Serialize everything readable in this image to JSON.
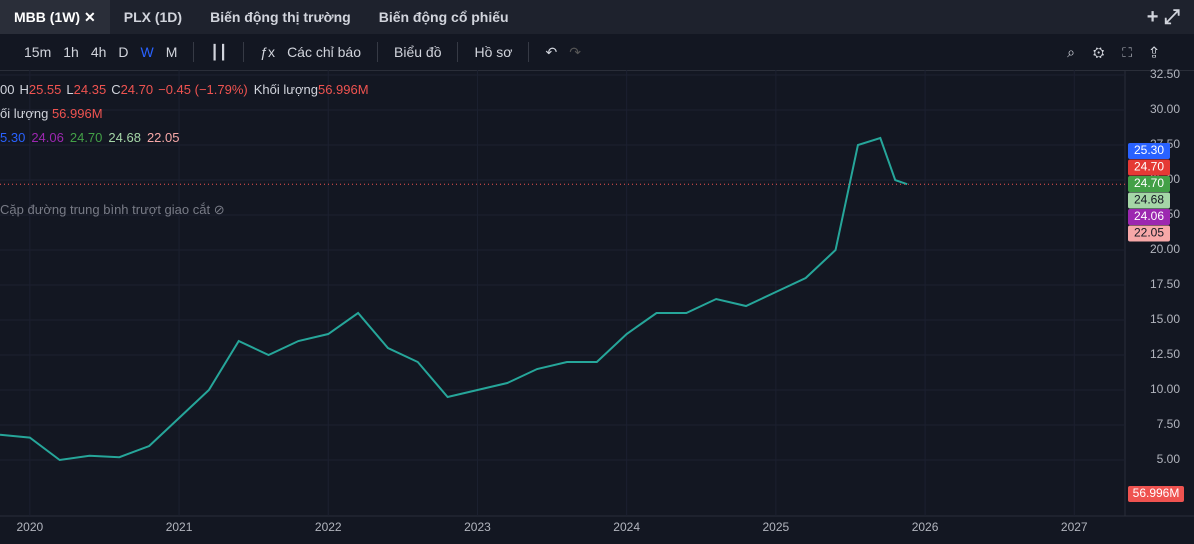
{
  "tabs": [
    "MBB (1W)",
    "PLX (1D)",
    "Biến động thị trường",
    "Biến động cổ phiếu"
  ],
  "toolbar": {
    "intervals": [
      "15m",
      "1h",
      "4h",
      "D",
      "W",
      "M"
    ],
    "indicators": "Các chỉ báo",
    "chart": "Biểu đồ",
    "profile": "Hồ sơ"
  },
  "legend": {
    "ohlc": [
      "00",
      "H",
      "25.55",
      "L",
      "24.35",
      "C",
      "24.70",
      "−0.45 (−1.79%)",
      "Khối lượng",
      "56.996M"
    ],
    "volume": [
      "ối lượng",
      "56.996M"
    ],
    "ichimoku": [
      {
        "text": "5.30",
        "color": "#2962ff"
      },
      {
        "text": "24.06",
        "color": "#9c27b0"
      },
      {
        "text": "24.70",
        "color": "#43a047"
      },
      {
        "text": "24.68",
        "color": "#a5d6a7"
      },
      {
        "text": "22.05",
        "color": "#f7a8a8"
      }
    ],
    "indicator": "Cặp đường trung bình trượt giao cắt"
  },
  "chart_data": {
    "type": "line",
    "xlim": [
      2019.8,
      2027.34
    ],
    "xticks": [
      2020,
      2021,
      2022,
      2023,
      2024,
      2025,
      2026,
      2027
    ],
    "ylim": [
      1,
      32.86
    ],
    "yticks": [
      {
        "value": 32.5,
        "label": "32.50"
      },
      {
        "value": 30,
        "label": "30.00"
      },
      {
        "value": 27.5,
        "label": "27.50"
      },
      {
        "value": 25,
        "label": "25.00"
      },
      {
        "value": 22.5,
        "label": "22.50"
      },
      {
        "value": 20,
        "label": "20.00"
      },
      {
        "value": 17.5,
        "label": "17.50"
      },
      {
        "value": 15,
        "label": "15.00"
      },
      {
        "value": 12.5,
        "label": "12.50"
      },
      {
        "value": 10,
        "label": "10.00"
      },
      {
        "value": 7.5,
        "label": "7.50"
      },
      {
        "value": 5,
        "label": "5.00"
      }
    ],
    "series": [
      {
        "name": "MBB",
        "color": "#26a69a",
        "x": [
          2019.8,
          2020.0,
          2020.2,
          2020.4,
          2020.6,
          2020.8,
          2021.0,
          2021.2,
          2021.4,
          2021.6,
          2021.8,
          2022.0,
          2022.2,
          2022.4,
          2022.6,
          2022.8,
          2023.0,
          2023.2,
          2023.4,
          2023.6,
          2023.8,
          2024.0,
          2024.2,
          2024.4,
          2024.6,
          2024.8,
          2025.0,
          2025.2,
          2025.4,
          2025.55,
          2025.7,
          2025.8,
          2025.88
        ],
        "values": [
          6.8,
          6.6,
          5.0,
          5.3,
          5.2,
          6.0,
          8.0,
          10.0,
          13.5,
          12.5,
          13.5,
          14.0,
          15.5,
          13.0,
          12.0,
          9.5,
          10.0,
          10.5,
          11.5,
          12.0,
          12.0,
          14.0,
          15.5,
          15.5,
          16.5,
          16.0,
          17.0,
          18.0,
          20.0,
          27.5,
          28.0,
          25.0,
          24.7
        ]
      }
    ],
    "last_price": 24.7,
    "price_labels": [
      {
        "value": 25.3,
        "label": "25.30",
        "color": "#2962ff"
      },
      {
        "value": 24.7,
        "label": "24.70",
        "color": "#e53935"
      },
      {
        "value": 24.7,
        "label": "24.70",
        "color": "#43a047"
      },
      {
        "value": 24.68,
        "label": "24.68",
        "color": "#a5d6a7"
      },
      {
        "value": 24.06,
        "label": "24.06",
        "color": "#9c27b0"
      },
      {
        "value": 22.05,
        "label": "22.05",
        "color": "#f7a8a8"
      }
    ],
    "volume_label": "56.996M"
  }
}
